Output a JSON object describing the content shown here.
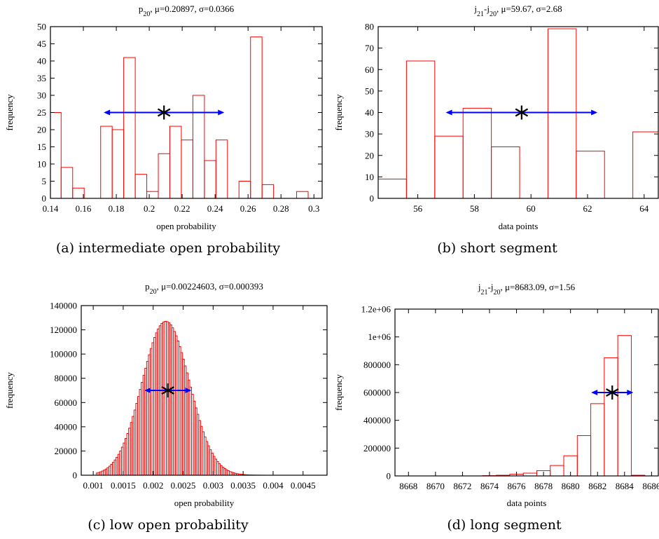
{
  "chart_data": [
    {
      "id": "a",
      "type": "bar",
      "title_parts": [
        "p",
        "20",
        ", μ=0.20897, σ=0.0366"
      ],
      "xlabel": "open probability",
      "ylabel": "frequency",
      "caption": "(a) intermediate open probability",
      "xlim": [
        0.14,
        0.305
      ],
      "ylim": [
        0,
        50
      ],
      "xticks": [
        0.14,
        0.16,
        0.18,
        0.2,
        0.22,
        0.24,
        0.26,
        0.28,
        0.3
      ],
      "yticks": [
        0,
        5,
        10,
        15,
        20,
        25,
        30,
        35,
        40,
        45,
        50
      ],
      "bins": [
        {
          "x0": 0.1395,
          "x1": 0.1465,
          "value": 25
        },
        {
          "x0": 0.1465,
          "x1": 0.1535,
          "value": 9
        },
        {
          "x0": 0.1535,
          "x1": 0.1605,
          "value": 3
        },
        {
          "x0": 0.1705,
          "x1": 0.1775,
          "value": 21
        },
        {
          "x0": 0.1775,
          "x1": 0.1845,
          "value": 20
        },
        {
          "x0": 0.1845,
          "x1": 0.1915,
          "value": 41
        },
        {
          "x0": 0.1915,
          "x1": 0.1985,
          "value": 7
        },
        {
          "x0": 0.1985,
          "x1": 0.2055,
          "value": 2
        },
        {
          "x0": 0.2055,
          "x1": 0.2125,
          "value": 13
        },
        {
          "x0": 0.2125,
          "x1": 0.2195,
          "value": 21
        },
        {
          "x0": 0.2195,
          "x1": 0.2265,
          "value": 17
        },
        {
          "x0": 0.2265,
          "x1": 0.2335,
          "value": 30
        },
        {
          "x0": 0.2335,
          "x1": 0.2405,
          "value": 11
        },
        {
          "x0": 0.2405,
          "x1": 0.2475,
          "value": 17
        },
        {
          "x0": 0.2545,
          "x1": 0.2615,
          "value": 5
        },
        {
          "x0": 0.2615,
          "x1": 0.2685,
          "value": 47
        },
        {
          "x0": 0.2685,
          "x1": 0.2755,
          "value": 4
        },
        {
          "x0": 0.2895,
          "x1": 0.2965,
          "value": 2
        }
      ],
      "marker": {
        "mean": 0.20897,
        "sigma": 0.0366,
        "y": 25
      }
    },
    {
      "id": "b",
      "type": "bar",
      "title_parts": [
        "j",
        "21",
        "-j",
        "20",
        ", μ=59.67, σ=2.68"
      ],
      "xlabel": "data points",
      "ylabel": "frequency",
      "caption": "(b) short segment",
      "xlim": [
        54.6,
        64.5
      ],
      "ylim": [
        0,
        80
      ],
      "xticks": [
        56,
        58,
        60,
        62,
        64
      ],
      "yticks": [
        0,
        10,
        20,
        30,
        40,
        50,
        60,
        70,
        80
      ],
      "bins": [
        {
          "x0": 54.6,
          "x1": 55.6,
          "value": 9
        },
        {
          "x0": 55.6,
          "x1": 56.6,
          "value": 64
        },
        {
          "x0": 56.6,
          "x1": 57.6,
          "value": 29
        },
        {
          "x0": 57.6,
          "x1": 58.6,
          "value": 42
        },
        {
          "x0": 58.6,
          "x1": 59.6,
          "value": 24
        },
        {
          "x0": 60.6,
          "x1": 61.6,
          "value": 79
        },
        {
          "x0": 61.6,
          "x1": 62.6,
          "value": 22
        },
        {
          "x0": 63.6,
          "x1": 64.6,
          "value": 31
        }
      ],
      "marker": {
        "mean": 59.67,
        "sigma": 2.68,
        "y": 40
      }
    },
    {
      "id": "c",
      "type": "bar",
      "title_parts": [
        "p",
        "20",
        ", μ=0.00224603, σ=0.000393"
      ],
      "xlabel": "open probability",
      "ylabel": "frequency",
      "caption": "(c) low open probability",
      "xlim": [
        0.0008,
        0.0049
      ],
      "ylim": [
        0,
        140000
      ],
      "xticks": [
        0.001,
        0.0015,
        0.002,
        0.0025,
        0.003,
        0.0035,
        0.004,
        0.0045
      ],
      "xtick_labels": [
        "0.001",
        "0.0015",
        "0.002",
        "0.0025",
        "0.003",
        "0.0035",
        "0.004",
        "0.0045"
      ],
      "yticks": [
        0,
        20000,
        40000,
        60000,
        80000,
        100000,
        120000,
        140000
      ],
      "bins_gaussian": {
        "mean": 0.00221,
        "sigma": 0.000393,
        "peak": 127000,
        "start": 0.00105,
        "end": 0.00385,
        "width": 3e-05
      },
      "marker": {
        "mean": 0.00224603,
        "sigma": 0.000393,
        "y": 70000
      }
    },
    {
      "id": "d",
      "type": "bar",
      "title_parts": [
        "j",
        "21",
        "-j",
        "20",
        ", μ=8683.09, σ=1.56"
      ],
      "xlabel": "data points",
      "ylabel": "frequency",
      "caption": "(d) long segment",
      "xlim": [
        8667,
        8686.5
      ],
      "ylim": [
        0,
        1200000
      ],
      "xticks": [
        8668,
        8670,
        8672,
        8674,
        8676,
        8678,
        8680,
        8682,
        8684,
        8686
      ],
      "yticks": [
        0,
        200000,
        400000,
        600000,
        800000,
        1000000,
        1200000
      ],
      "ytick_labels": [
        "0",
        "200000",
        "400000",
        "600000",
        "800000",
        "1e+06",
        "1.2e+06"
      ],
      "bins": [
        {
          "x0": 8673.5,
          "x1": 8674.5,
          "value": 2000
        },
        {
          "x0": 8674.5,
          "x1": 8675.5,
          "value": 5000
        },
        {
          "x0": 8675.5,
          "x1": 8676.5,
          "value": 12000
        },
        {
          "x0": 8676.5,
          "x1": 8677.5,
          "value": 20000
        },
        {
          "x0": 8677.5,
          "x1": 8678.5,
          "value": 38000
        },
        {
          "x0": 8678.5,
          "x1": 8679.5,
          "value": 75000
        },
        {
          "x0": 8679.5,
          "x1": 8680.5,
          "value": 145000
        },
        {
          "x0": 8680.5,
          "x1": 8681.5,
          "value": 290000
        },
        {
          "x0": 8681.5,
          "x1": 8682.5,
          "value": 520000
        },
        {
          "x0": 8682.5,
          "x1": 8683.5,
          "value": 850000
        },
        {
          "x0": 8683.5,
          "x1": 8684.5,
          "value": 1010000
        },
        {
          "x0": 8684.5,
          "x1": 8685.5,
          "value": 5000
        }
      ],
      "marker": {
        "mean": 8683.09,
        "sigma": 1.56,
        "y": 600000
      }
    }
  ]
}
